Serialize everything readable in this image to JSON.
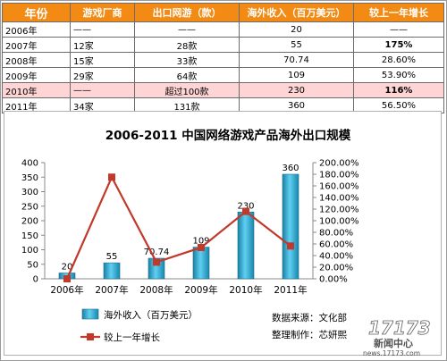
{
  "table": {
    "headers": [
      "年份",
      "游戏厂商",
      "出口网游（款）",
      "海外收入（百万美元）",
      "较上一年增长"
    ],
    "rows": [
      [
        "2006年",
        "——",
        "——",
        "20",
        "——"
      ],
      [
        "2007年",
        "12家",
        "28款",
        "55",
        "175%"
      ],
      [
        "2008年",
        "15家",
        "33款",
        "70.74",
        "28.60%"
      ],
      [
        "2009年",
        "29家",
        "64款",
        "109",
        "53.90%"
      ],
      [
        "2010年",
        "——",
        "超过100款",
        "230",
        "116%"
      ],
      [
        "2011年",
        "34家",
        "131款",
        "360",
        "56.50%"
      ]
    ],
    "colors": {
      "header_bg": "#f28a14",
      "pink_row": "#ffd4d4",
      "highlight": "#ff0000"
    }
  },
  "chart_data": {
    "type": "bar",
    "title": "2006-2011 中国网络游戏产品海外出口规模",
    "categories": [
      "2006年",
      "2007年",
      "2008年",
      "2009年",
      "2010年",
      "2011年"
    ],
    "series": [
      {
        "name": "海外收入（百万美元）",
        "type": "bar",
        "axis": "left",
        "values": [
          20,
          55,
          70.74,
          109,
          230,
          360
        ],
        "labels": [
          "20",
          "55",
          "70.74",
          "109",
          "230",
          "360"
        ],
        "color": "#2aa8d2"
      },
      {
        "name": "较上一年增长",
        "type": "line",
        "axis": "right",
        "values": [
          0,
          175,
          28.6,
          53.9,
          116,
          56.5
        ],
        "color": "#c0392b"
      }
    ],
    "y_left": {
      "range": [
        0,
        400
      ],
      "ticks": [
        "0",
        "50",
        "100",
        "150",
        "200",
        "250",
        "300",
        "350",
        "400"
      ]
    },
    "y_right": {
      "range": [
        0,
        200
      ],
      "ticks": [
        "0.00%",
        "20.00%",
        "40.00%",
        "60.00%",
        "80.00%",
        "100.00%",
        "120.00%",
        "140.00%",
        "160.00%",
        "180.00%",
        "200.00%"
      ]
    },
    "legend_position": "bottom-left",
    "grid": false
  },
  "source_note": {
    "source": "数据来源：文化部",
    "editor": "整理制作：芯妍熙"
  },
  "watermark": {
    "brand": "17173",
    "subtitle": "新闻中心",
    "url": "news.17173.com"
  }
}
